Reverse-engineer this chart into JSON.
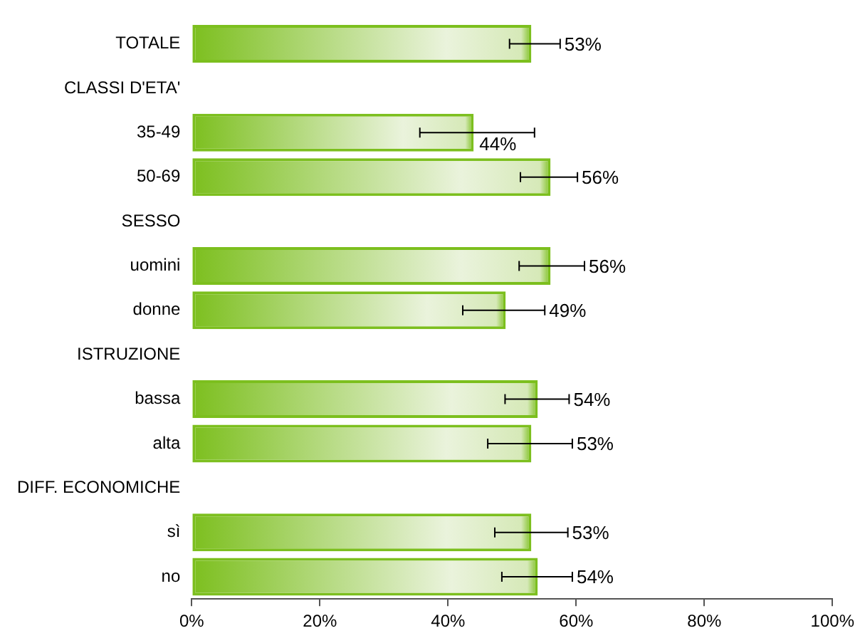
{
  "chart_data": {
    "type": "bar",
    "orientation": "horizontal",
    "categories": [
      "TOTALE",
      "CLASSI D'ETA'",
      "35-49",
      "50-69",
      "SESSO",
      "uomini",
      "donne",
      "ISTRUZIONE",
      "bassa",
      "alta",
      "DIFF. ECONOMICHE",
      "sì",
      "no"
    ],
    "values": [
      53,
      null,
      44,
      56,
      null,
      56,
      49,
      null,
      54,
      53,
      null,
      53,
      54
    ],
    "errors": [
      [
        49.6,
        57.5
      ],
      null,
      [
        35.6,
        53.5
      ],
      [
        51.3,
        60.2
      ],
      null,
      [
        51.1,
        61.3
      ],
      [
        42.3,
        55.1
      ],
      null,
      [
        48.9,
        58.9
      ],
      [
        46.2,
        59.4
      ],
      null,
      [
        47.3,
        58.7
      ],
      [
        48.4,
        59.4
      ]
    ],
    "value_labels": [
      "53%",
      null,
      "44%",
      "56%",
      null,
      "56%",
      "49%",
      null,
      "54%",
      "53%",
      null,
      "53%",
      "54%"
    ],
    "color": "#7cbf1e",
    "xlim": [
      0,
      100
    ],
    "xticks": [
      {
        "value": 0,
        "label": "0%"
      },
      {
        "value": 20,
        "label": "20%"
      },
      {
        "value": 40,
        "label": "40%"
      },
      {
        "value": 60,
        "label": "60%"
      },
      {
        "value": 80,
        "label": "80%"
      },
      {
        "value": 100,
        "label": "100%"
      }
    ],
    "grid": false,
    "legend": false
  }
}
